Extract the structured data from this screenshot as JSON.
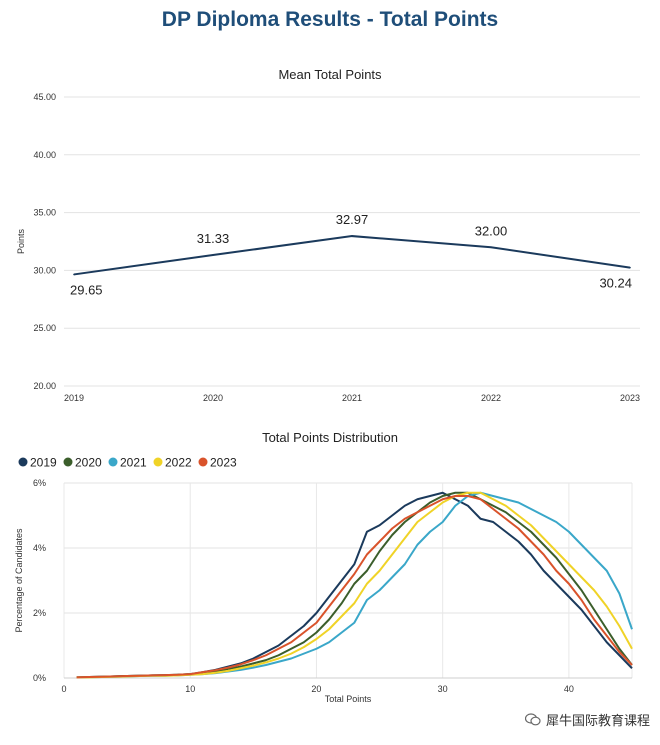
{
  "title": "DP Diploma Results - Total Points",
  "watermark": "犀牛国际教育课程",
  "chart_data": [
    {
      "type": "line",
      "title": "Mean Total Points",
      "xlabel": "",
      "ylabel": "Points",
      "x": [
        "2019",
        "2020",
        "2021",
        "2022",
        "2023"
      ],
      "series": [
        {
          "values": [
            29.65,
            31.33,
            32.97,
            32.0,
            30.24
          ],
          "labels": [
            "29.65",
            "31.33",
            "32.97",
            "32.00",
            "30.24"
          ],
          "color": "#1b3a5c"
        }
      ],
      "yticks": [
        "20.00",
        "25.00",
        "30.00",
        "35.00",
        "40.00",
        "45.00"
      ],
      "ylim": [
        20,
        45
      ],
      "grid": true
    },
    {
      "type": "line",
      "title": "Total Points Distribution",
      "xlabel": "Total Points",
      "ylabel": "Percentage of Candidates",
      "xlim": [
        0,
        45
      ],
      "xticks": [
        "0",
        "10",
        "20",
        "30",
        "40"
      ],
      "yticks": [
        "0%",
        "2%",
        "4%",
        "6%"
      ],
      "ylim": [
        0,
        6
      ],
      "legend": "top-left",
      "grid": true,
      "x": [
        1,
        2,
        3,
        4,
        5,
        6,
        7,
        8,
        9,
        10,
        11,
        12,
        13,
        14,
        15,
        16,
        17,
        18,
        19,
        20,
        21,
        22,
        23,
        24,
        25,
        26,
        27,
        28,
        29,
        30,
        31,
        32,
        33,
        34,
        35,
        36,
        37,
        38,
        39,
        40,
        41,
        42,
        43,
        44,
        45
      ],
      "series": [
        {
          "name": "2019",
          "color": "#1b3a5c",
          "values": [
            0.02,
            0.03,
            0.04,
            0.05,
            0.06,
            0.07,
            0.08,
            0.09,
            0.1,
            0.12,
            0.18,
            0.25,
            0.35,
            0.45,
            0.6,
            0.8,
            1.0,
            1.3,
            1.6,
            2.0,
            2.5,
            3.0,
            3.5,
            4.5,
            4.7,
            5.0,
            5.3,
            5.5,
            5.6,
            5.7,
            5.5,
            5.3,
            4.9,
            4.8,
            4.5,
            4.2,
            3.8,
            3.3,
            2.9,
            2.5,
            2.1,
            1.6,
            1.1,
            0.7,
            0.3
          ]
        },
        {
          "name": "2020",
          "color": "#3b5e2b",
          "values": [
            0.02,
            0.03,
            0.04,
            0.05,
            0.06,
            0.07,
            0.08,
            0.08,
            0.1,
            0.12,
            0.15,
            0.2,
            0.28,
            0.35,
            0.45,
            0.55,
            0.7,
            0.9,
            1.1,
            1.4,
            1.8,
            2.3,
            2.9,
            3.3,
            3.9,
            4.4,
            4.8,
            5.1,
            5.4,
            5.6,
            5.7,
            5.7,
            5.5,
            5.3,
            5.1,
            4.8,
            4.5,
            4.1,
            3.7,
            3.2,
            2.7,
            2.1,
            1.5,
            0.9,
            0.4
          ]
        },
        {
          "name": "2021",
          "color": "#3aa7c9",
          "values": [
            0.02,
            0.02,
            0.03,
            0.04,
            0.05,
            0.06,
            0.07,
            0.07,
            0.08,
            0.1,
            0.12,
            0.15,
            0.2,
            0.25,
            0.32,
            0.4,
            0.5,
            0.6,
            0.75,
            0.9,
            1.1,
            1.4,
            1.7,
            2.4,
            2.7,
            3.1,
            3.5,
            4.1,
            4.5,
            4.8,
            5.3,
            5.6,
            5.7,
            5.6,
            5.5,
            5.4,
            5.2,
            5.0,
            4.8,
            4.5,
            4.1,
            3.7,
            3.3,
            2.6,
            1.5
          ]
        },
        {
          "name": "2022",
          "color": "#f0d327",
          "values": [
            0.02,
            0.02,
            0.03,
            0.04,
            0.05,
            0.06,
            0.07,
            0.07,
            0.08,
            0.1,
            0.12,
            0.16,
            0.22,
            0.3,
            0.38,
            0.48,
            0.6,
            0.75,
            0.95,
            1.2,
            1.5,
            1.9,
            2.3,
            2.9,
            3.3,
            3.8,
            4.3,
            4.8,
            5.1,
            5.4,
            5.6,
            5.7,
            5.7,
            5.5,
            5.3,
            5.0,
            4.7,
            4.3,
            3.9,
            3.5,
            3.1,
            2.7,
            2.2,
            1.6,
            0.9
          ]
        },
        {
          "name": "2023",
          "color": "#d9532b",
          "values": [
            0.02,
            0.03,
            0.04,
            0.05,
            0.06,
            0.07,
            0.08,
            0.09,
            0.1,
            0.12,
            0.18,
            0.24,
            0.32,
            0.42,
            0.55,
            0.7,
            0.9,
            1.1,
            1.4,
            1.7,
            2.2,
            2.7,
            3.2,
            3.8,
            4.2,
            4.6,
            4.9,
            5.1,
            5.3,
            5.5,
            5.6,
            5.6,
            5.5,
            5.2,
            4.9,
            4.6,
            4.2,
            3.8,
            3.3,
            2.9,
            2.4,
            1.8,
            1.3,
            0.8,
            0.4
          ]
        }
      ]
    }
  ]
}
